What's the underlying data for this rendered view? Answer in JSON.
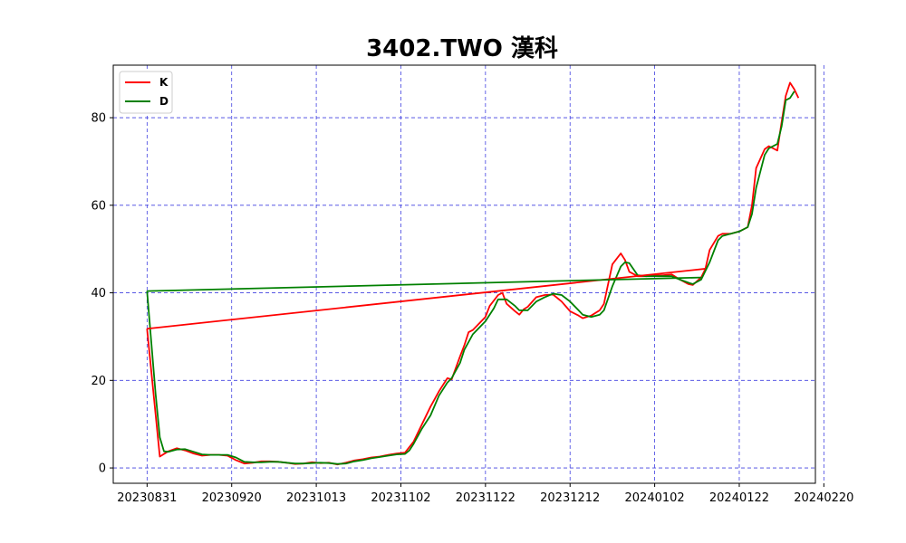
{
  "chart_data": {
    "type": "line",
    "title": "3402.TWO 漢科",
    "xlabel": "",
    "ylabel": "",
    "ylim": [
      -3.5,
      92
    ],
    "grid": true,
    "grid_color": "#4040e0",
    "legend_placement": "top-left",
    "x_ticks": [
      "20230831",
      "20230920",
      "20231013",
      "20231102",
      "20231122",
      "20231212",
      "20240102",
      "20240122",
      "20240220"
    ],
    "y_ticks": [
      0,
      20,
      40,
      60,
      80
    ],
    "series": [
      {
        "name": "K",
        "color": "#ff0000",
        "points": [
          [
            0,
            31.8
          ],
          [
            3,
            2.6
          ],
          [
            5,
            3.8
          ],
          [
            7,
            4.5
          ],
          [
            9,
            4.0
          ],
          [
            11,
            3.3
          ],
          [
            13,
            2.8
          ],
          [
            15,
            3.0
          ],
          [
            17,
            3.0
          ],
          [
            19,
            2.8
          ],
          [
            21,
            1.8
          ],
          [
            23,
            1.0
          ],
          [
            25,
            1.2
          ],
          [
            27,
            1.5
          ],
          [
            29,
            1.5
          ],
          [
            31,
            1.4
          ],
          [
            33,
            1.2
          ],
          [
            35,
            0.9
          ],
          [
            37,
            1.0
          ],
          [
            39,
            1.3
          ],
          [
            41,
            1.1
          ],
          [
            43,
            1.2
          ],
          [
            45,
            0.8
          ],
          [
            47,
            1.2
          ],
          [
            49,
            1.7
          ],
          [
            51,
            2.0
          ],
          [
            53,
            2.4
          ],
          [
            55,
            2.6
          ],
          [
            57,
            3.0
          ],
          [
            59,
            3.3
          ],
          [
            61,
            3.5
          ],
          [
            63,
            6.0
          ],
          [
            65,
            10.0
          ],
          [
            67,
            14.0
          ],
          [
            69,
            17.5
          ],
          [
            71,
            20.5
          ],
          [
            72,
            20.2
          ],
          [
            74,
            25.5
          ],
          [
            75,
            28.0
          ],
          [
            76,
            31.0
          ],
          [
            77,
            31.5
          ],
          [
            79,
            33.5
          ],
          [
            80,
            34.5
          ],
          [
            81,
            37.0
          ],
          [
            83,
            39.5
          ],
          [
            84,
            40.0
          ],
          [
            85,
            37.5
          ],
          [
            87,
            35.8
          ],
          [
            88,
            35.0
          ],
          [
            89,
            36.2
          ],
          [
            90,
            36.8
          ],
          [
            92,
            39.0
          ],
          [
            94,
            39.5
          ],
          [
            96,
            39.6
          ],
          [
            98,
            38.0
          ],
          [
            100,
            35.8
          ],
          [
            102,
            34.8
          ],
          [
            103,
            34.2
          ],
          [
            105,
            34.8
          ],
          [
            107,
            36.0
          ],
          [
            108,
            37.5
          ],
          [
            109,
            42.0
          ],
          [
            110,
            46.5
          ],
          [
            112,
            49.0
          ],
          [
            113,
            47.5
          ],
          [
            114,
            44.8
          ],
          [
            116,
            43.8
          ],
          [
            118,
            43.8
          ],
          [
            120,
            44.0
          ],
          [
            122,
            44.0
          ],
          [
            124,
            44.2
          ],
          [
            126,
            43.0
          ],
          [
            128,
            42.0
          ],
          [
            129,
            41.8
          ],
          [
            131,
            43.5
          ],
          [
            132,
            45.5
          ],
          [
            133,
            49.8
          ],
          [
            135,
            53.0
          ],
          [
            136,
            53.5
          ],
          [
            138,
            53.5
          ],
          [
            140,
            54.0
          ],
          [
            142,
            55.0
          ],
          [
            143,
            60.0
          ],
          [
            144,
            68.5
          ],
          [
            146,
            72.8
          ],
          [
            147,
            73.5
          ],
          [
            149,
            72.5
          ],
          [
            150,
            79.0
          ],
          [
            151,
            85.0
          ],
          [
            152,
            88.0
          ],
          [
            153,
            86.5
          ],
          [
            154,
            84.5
          ]
        ]
      },
      {
        "name": "D",
        "color": "#008000",
        "points": [
          [
            0,
            40.4
          ],
          [
            2,
            17.0
          ],
          [
            3,
            7.0
          ],
          [
            4,
            3.8
          ],
          [
            5,
            3.7
          ],
          [
            7,
            4.2
          ],
          [
            9,
            4.3
          ],
          [
            11,
            3.7
          ],
          [
            13,
            3.1
          ],
          [
            15,
            3.0
          ],
          [
            17,
            3.0
          ],
          [
            19,
            3.0
          ],
          [
            21,
            2.4
          ],
          [
            23,
            1.4
          ],
          [
            25,
            1.3
          ],
          [
            27,
            1.3
          ],
          [
            29,
            1.4
          ],
          [
            31,
            1.4
          ],
          [
            33,
            1.2
          ],
          [
            35,
            1.0
          ],
          [
            37,
            1.0
          ],
          [
            39,
            1.1
          ],
          [
            41,
            1.2
          ],
          [
            43,
            1.1
          ],
          [
            45,
            0.9
          ],
          [
            47,
            1.0
          ],
          [
            49,
            1.5
          ],
          [
            51,
            1.8
          ],
          [
            53,
            2.2
          ],
          [
            55,
            2.5
          ],
          [
            57,
            2.8
          ],
          [
            59,
            3.1
          ],
          [
            61,
            3.2
          ],
          [
            62,
            4.0
          ],
          [
            63,
            5.5
          ],
          [
            65,
            9.0
          ],
          [
            67,
            12.0
          ],
          [
            69,
            16.5
          ],
          [
            71,
            19.5
          ],
          [
            72,
            20.5
          ],
          [
            74,
            24.0
          ],
          [
            75,
            27.0
          ],
          [
            77,
            30.5
          ],
          [
            79,
            32.5
          ],
          [
            80,
            33.5
          ],
          [
            82,
            36.5
          ],
          [
            83,
            38.5
          ],
          [
            85,
            38.5
          ],
          [
            87,
            37.0
          ],
          [
            88,
            36.0
          ],
          [
            90,
            36.0
          ],
          [
            92,
            38.0
          ],
          [
            94,
            39.0
          ],
          [
            96,
            39.8
          ],
          [
            98,
            39.5
          ],
          [
            100,
            38.0
          ],
          [
            102,
            36.0
          ],
          [
            103,
            35.0
          ],
          [
            105,
            34.5
          ],
          [
            107,
            35.0
          ],
          [
            108,
            36.0
          ],
          [
            110,
            41.5
          ],
          [
            112,
            46.0
          ],
          [
            113,
            47.0
          ],
          [
            114,
            46.8
          ],
          [
            116,
            44.0
          ],
          [
            118,
            43.8
          ],
          [
            120,
            43.8
          ],
          [
            122,
            43.8
          ],
          [
            124,
            43.8
          ],
          [
            126,
            43.0
          ],
          [
            128,
            42.3
          ],
          [
            129,
            42.0
          ],
          [
            131,
            43.0
          ],
          [
            132,
            45.0
          ],
          [
            133,
            47.0
          ],
          [
            135,
            52.0
          ],
          [
            136,
            53.0
          ],
          [
            138,
            53.5
          ],
          [
            140,
            54.0
          ],
          [
            142,
            55.0
          ],
          [
            143,
            58.0
          ],
          [
            144,
            64.0
          ],
          [
            146,
            71.5
          ],
          [
            147,
            73.0
          ],
          [
            149,
            74.0
          ],
          [
            150,
            78.0
          ],
          [
            151,
            84.0
          ],
          [
            152,
            84.5
          ],
          [
            153,
            86.0
          ]
        ]
      }
    ],
    "x_domain": [
      -8,
      158
    ]
  }
}
